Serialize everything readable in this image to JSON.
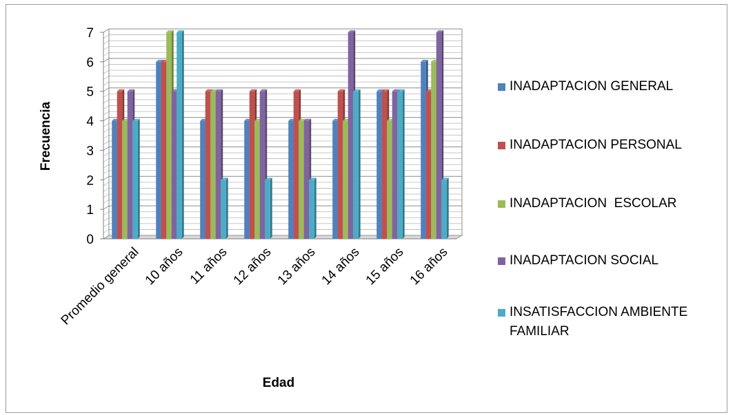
{
  "chart_data": {
    "type": "bar",
    "ylabel": "Frecuencia",
    "xlabel": "Edad",
    "ylim": [
      0,
      7
    ],
    "yticks": [
      0,
      1,
      2,
      3,
      4,
      5,
      6,
      7
    ],
    "grid": true,
    "legend_position": "right",
    "categories": [
      "Promedio general",
      "10 años",
      "11 años",
      "12 años",
      "13 años",
      "14 años",
      "15 años",
      "16 años"
    ],
    "series": [
      {
        "name": "INADAPTACION GENERAL",
        "color": "#4F81BD",
        "values": [
          4,
          6,
          4,
          4,
          4,
          4,
          5,
          6
        ]
      },
      {
        "name": "INADAPTACION PERSONAL",
        "color": "#C0504D",
        "values": [
          5,
          6,
          5,
          5,
          5,
          5,
          5,
          5
        ]
      },
      {
        "name": "INADAPTACION  ESCOLAR",
        "color": "#9BBB59",
        "values": [
          4,
          7,
          5,
          4,
          4,
          4,
          4,
          6
        ]
      },
      {
        "name": "INADAPTACION SOCIAL",
        "color": "#8064A2",
        "values": [
          5,
          5,
          5,
          5,
          4,
          7,
          5,
          7
        ]
      },
      {
        "name": "INSATISFACCION AMBIENTE FAMILIAR",
        "color": "#4BACC6",
        "values": [
          4,
          7,
          2,
          2,
          2,
          5,
          5,
          2
        ]
      }
    ]
  }
}
